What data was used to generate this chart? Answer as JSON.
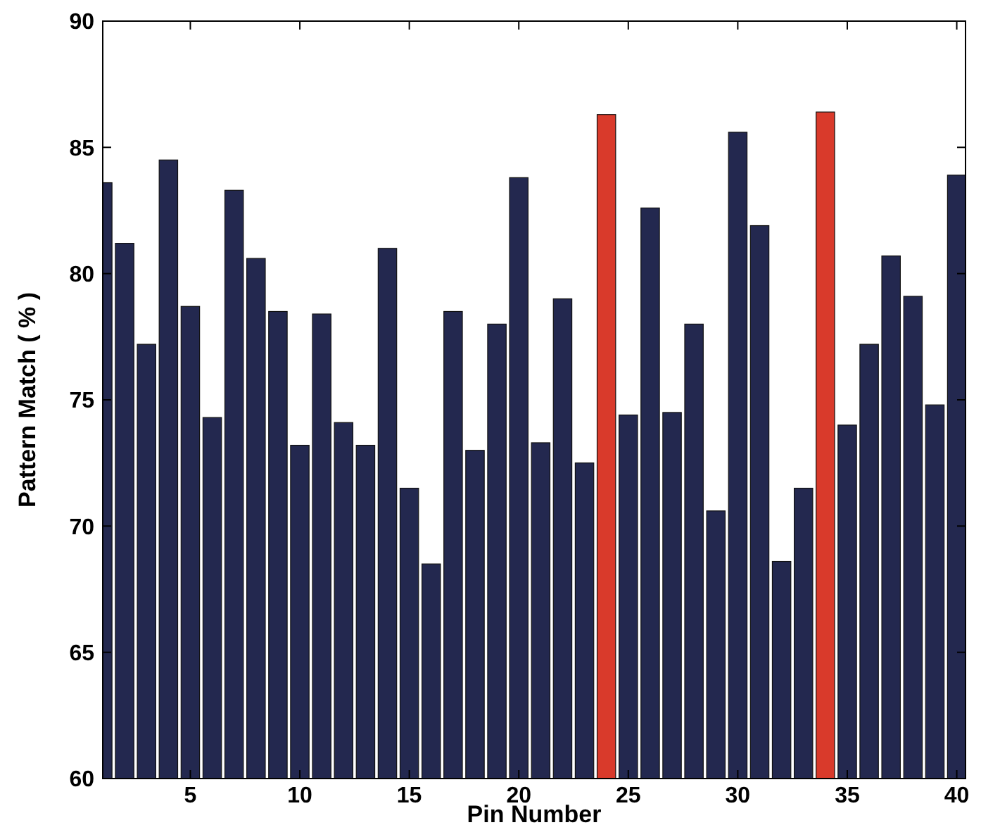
{
  "chart_data": {
    "type": "bar",
    "xlabel": "Pin Number",
    "ylabel": "Pattern Match ( % )",
    "x": [
      1,
      2,
      3,
      4,
      5,
      6,
      7,
      8,
      9,
      10,
      11,
      12,
      13,
      14,
      15,
      16,
      17,
      18,
      19,
      20,
      21,
      22,
      23,
      24,
      25,
      26,
      27,
      28,
      29,
      30,
      31,
      32,
      33,
      34,
      35,
      36,
      37,
      38,
      39,
      40
    ],
    "values": [
      83.6,
      81.2,
      77.2,
      84.5,
      78.7,
      74.3,
      83.3,
      80.6,
      78.5,
      73.2,
      78.4,
      74.1,
      73.2,
      81.0,
      71.5,
      68.5,
      78.5,
      73.0,
      78.0,
      83.8,
      73.3,
      79.0,
      72.5,
      86.3,
      74.4,
      82.6,
      74.5,
      78.0,
      70.6,
      85.6,
      81.9,
      68.6,
      71.5,
      86.4,
      74.0,
      77.2,
      80.7,
      79.1,
      74.8,
      83.9
    ],
    "colors": [
      "#23284f",
      "#23284f",
      "#23284f",
      "#23284f",
      "#23284f",
      "#23284f",
      "#23284f",
      "#23284f",
      "#23284f",
      "#23284f",
      "#23284f",
      "#23284f",
      "#23284f",
      "#23284f",
      "#23284f",
      "#23284f",
      "#23284f",
      "#23284f",
      "#23284f",
      "#23284f",
      "#23284f",
      "#23284f",
      "#23284f",
      "#d93a2b",
      "#23284f",
      "#23284f",
      "#23284f",
      "#23284f",
      "#23284f",
      "#23284f",
      "#23284f",
      "#23284f",
      "#23284f",
      "#d93a2b",
      "#23284f",
      "#23284f",
      "#23284f",
      "#23284f",
      "#23284f",
      "#23284f"
    ],
    "xlim": [
      1,
      40.4
    ],
    "xticks": [
      5,
      10,
      15,
      20,
      25,
      30,
      35,
      40
    ],
    "ylim": [
      60,
      90
    ],
    "yticks": [
      60,
      65,
      70,
      75,
      80,
      85,
      90
    ],
    "grid": false
  }
}
